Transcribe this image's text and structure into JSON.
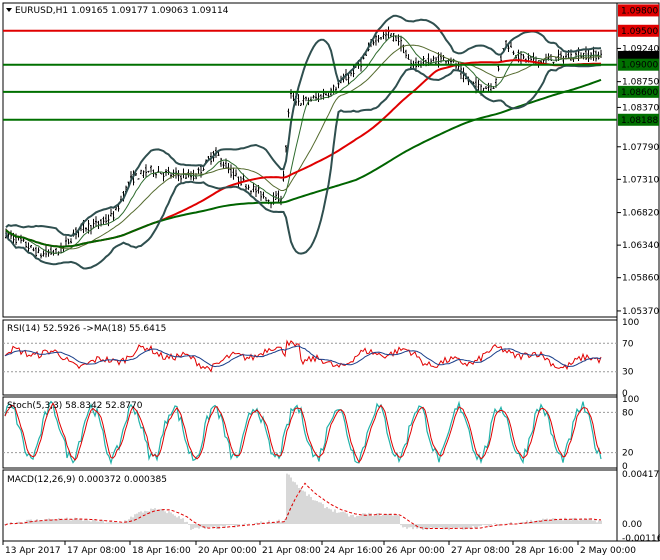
{
  "colors": {
    "bar": "#000000",
    "resistance": "#e00000",
    "support": "#007000",
    "ma_red": "#e00000",
    "ma_green": "#006400",
    "bb": "#2f4f4f",
    "osc_main": "#1a3f8a",
    "osc_signal": "#e00000",
    "stoch_main": "#20b2aa",
    "hist": "#b0b0b0"
  },
  "chart_data": [
    {
      "type": "candlestick",
      "title": "EURUSD,H1  1.09165 1.09177 1.09063 1.09114",
      "ylim": [
        1.0531,
        1.0988
      ],
      "y_ticks": [
        "1.09240",
        "1.08750",
        "1.08370",
        "1.07790",
        "1.07310",
        "1.06820",
        "1.06340",
        "1.05860",
        "1.05370"
      ],
      "levels": [
        {
          "price": 1.098,
          "label": "1.09800",
          "color": "#e00000",
          "line": false
        },
        {
          "price": 1.095,
          "label": "1.09500",
          "color": "#e00000",
          "line": true
        },
        {
          "price": 1.09114,
          "label": "1.09114",
          "color": "#000000",
          "line": false
        },
        {
          "price": 1.09,
          "label": "1.09000",
          "color": "#007000",
          "line": true
        },
        {
          "price": 1.086,
          "label": "1.08600",
          "color": "#007000",
          "line": true
        },
        {
          "price": 1.08188,
          "label": "1.08188",
          "color": "#007000",
          "line": true
        }
      ]
    },
    {
      "type": "line",
      "title": "RSI(14) 52.5926  ->MA(18) 55.6415",
      "ylim": [
        0,
        100
      ],
      "y_ticks": [
        "100",
        "70",
        "30",
        "0"
      ]
    },
    {
      "type": "line",
      "title": "Stoch(5,3,3) 58.8342 52.8770",
      "ylim": [
        0,
        100
      ],
      "y_ticks": [
        "100",
        "80",
        "20",
        "0"
      ]
    },
    {
      "type": "histogram",
      "title": "MACD(12,26,9) 0.000372 0.000385",
      "y_ticks": [
        "0.004171",
        "0.00",
        "-0.001164"
      ]
    }
  ],
  "x_labels": [
    "13 Apr 2017",
    "17 Apr 08:00",
    "18 Apr 16:00",
    "20 Apr 00:00",
    "21 Apr 08:00",
    "24 Apr 16:00",
    "26 Apr 00:00",
    "27 Apr 08:00",
    "28 Apr 16:00",
    "2 May 00:00"
  ]
}
